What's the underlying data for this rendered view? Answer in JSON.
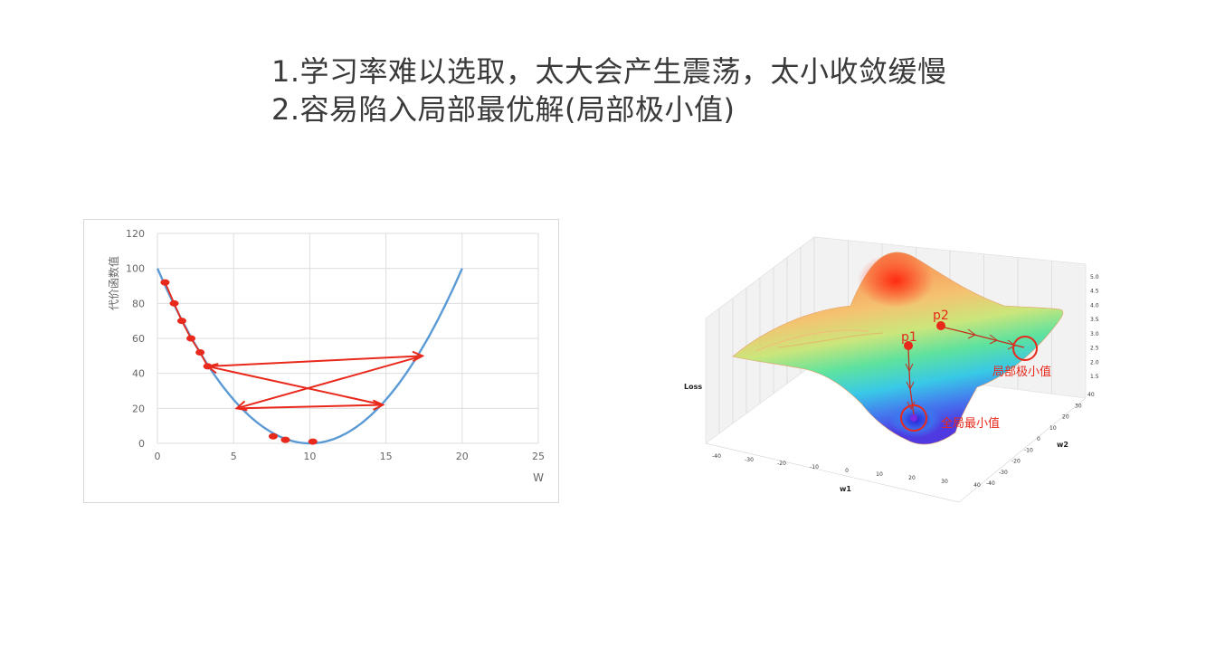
{
  "slide": {
    "points": [
      "1.学习率难以选取，太大会产生震荡，太小收敛缓慢",
      "2.容易陷入局部最优解(局部极小值)"
    ]
  },
  "chart_data": [
    {
      "type": "line",
      "xlabel": "W",
      "ylabel": "代价函数值",
      "xlim": [
        0,
        25
      ],
      "ylim": [
        0,
        120
      ],
      "x_ticks": [
        0,
        5,
        10,
        15,
        20,
        25
      ],
      "y_ticks": [
        0,
        20,
        40,
        60,
        80,
        100,
        120
      ],
      "grid": true,
      "series": [
        {
          "x": [
            0,
            2,
            4,
            6,
            8,
            10,
            12,
            14,
            16,
            18,
            20
          ],
          "y": [
            100,
            64,
            36,
            16,
            4,
            0,
            4,
            16,
            36,
            64,
            100
          ]
        }
      ],
      "annotations": {
        "color": "#e8291c",
        "jumps": [
          {
            "x": [
              3.3,
              17.4
            ],
            "y": [
              44,
              50
            ]
          },
          {
            "x": [
              17.4,
              5.2
            ],
            "y": [
              50,
              20
            ]
          },
          {
            "x": [
              5.2,
              14.8
            ],
            "y": [
              20,
              22
            ]
          },
          {
            "x": [
              14.8,
              3.3
            ],
            "y": [
              22,
              44
            ]
          }
        ],
        "small_steps": [
          {
            "x": 0.5,
            "y": 92
          },
          {
            "x": 1.1,
            "y": 80
          },
          {
            "x": 1.6,
            "y": 70
          },
          {
            "x": 2.2,
            "y": 60
          },
          {
            "x": 2.8,
            "y": 52
          },
          {
            "x": 3.3,
            "y": 44
          },
          {
            "x": 7.6,
            "y": 4
          },
          {
            "x": 8.4,
            "y": 2
          },
          {
            "x": 10.2,
            "y": 1
          }
        ]
      }
    },
    {
      "type": "surface3d",
      "xlabel": "w1",
      "ylabel": "w2",
      "zlabel": "Loss",
      "w1_ticks": [
        -40,
        -30,
        -20,
        -10,
        0,
        10,
        20,
        30,
        40
      ],
      "w2_ticks": [
        -40,
        -30,
        -20,
        -10,
        0,
        10,
        20,
        30,
        40
      ],
      "z_ticks": [
        1.5,
        2.0,
        2.5,
        3.0,
        3.5,
        4.0,
        4.5,
        5.0
      ],
      "annotations": [
        {
          "label": "p1"
        },
        {
          "label": "p2"
        },
        {
          "label": "局部极小值"
        },
        {
          "label": "全局最小值"
        }
      ]
    }
  ]
}
